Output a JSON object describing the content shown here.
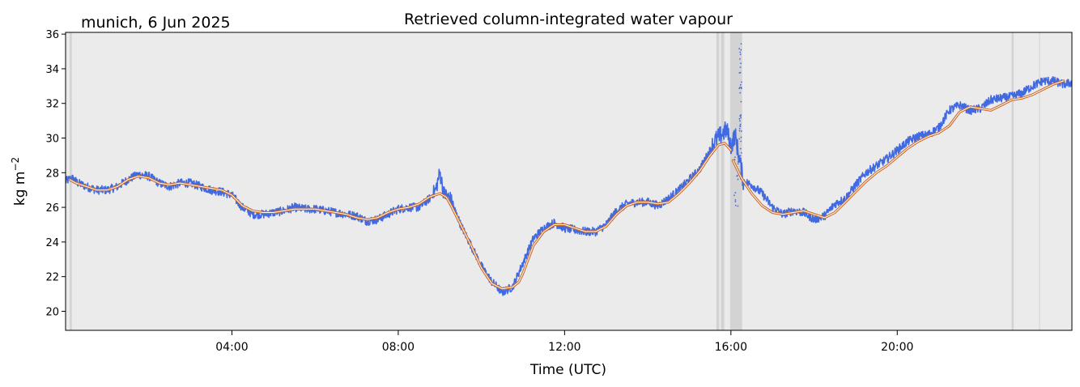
{
  "chart_data": {
    "type": "line",
    "title": "Retrieved column-integrated water vapour",
    "location_date": "munich, 6 Jun 2025",
    "xlabel": "Time (UTC)",
    "ylabel": "kg m",
    "ylabel_superscript": "−2",
    "x_unit": "hours UTC",
    "xlim": [
      0,
      24.2
    ],
    "ylim": [
      18.9,
      36.1
    ],
    "y_ticks": [
      20,
      22,
      24,
      26,
      28,
      30,
      32,
      34,
      36
    ],
    "y_tick_labels": [
      "20",
      "22",
      "24",
      "26",
      "28",
      "30",
      "32",
      "34",
      "36"
    ],
    "x_ticks": [
      4,
      8,
      12,
      16,
      20
    ],
    "x_tick_labels": [
      "04:00",
      "08:00",
      "12:00",
      "16:00",
      "20:00"
    ],
    "grid": false,
    "background_color": "#ebebeb",
    "raw_color": "#4169e1",
    "smooth_outer_color": "#c96a28",
    "smooth_inner_color": "#ffffff",
    "flag_color": "#d3d3d3",
    "flagged_intervals": [
      [
        0.1,
        0.15
      ],
      [
        15.65,
        15.72
      ],
      [
        15.76,
        15.84
      ],
      [
        15.98,
        16.27
      ],
      [
        22.75,
        22.8
      ],
      [
        23.41,
        23.42
      ]
    ],
    "series": [
      {
        "kind": "raw",
        "x": [
          0.0,
          0.15,
          0.3,
          0.5,
          0.75,
          1.0,
          1.25,
          1.5,
          1.75,
          2.0,
          2.25,
          2.5,
          2.75,
          3.0,
          3.25,
          3.5,
          3.75,
          4.0,
          4.25,
          4.5,
          4.75,
          5.0,
          5.25,
          5.5,
          5.75,
          6.0,
          6.25,
          6.5,
          6.75,
          7.0,
          7.25,
          7.5,
          7.75,
          8.0,
          8.25,
          8.5,
          8.75,
          8.9,
          9.0,
          9.1,
          9.25,
          9.5,
          9.75,
          10.0,
          10.25,
          10.5,
          10.75,
          11.0,
          11.25,
          11.5,
          11.75,
          12.0,
          12.25,
          12.5,
          12.75,
          13.0,
          13.25,
          13.5,
          13.75,
          14.0,
          14.25,
          14.5,
          14.75,
          15.0,
          15.25,
          15.5,
          15.6,
          15.9,
          16.0,
          16.1,
          16.3,
          16.5,
          16.75,
          17.0,
          17.25,
          17.5,
          17.75,
          18.0,
          18.25,
          18.5,
          18.75,
          19.0,
          19.25,
          19.5,
          19.75,
          20.0,
          20.25,
          20.5,
          20.75,
          21.0,
          21.25,
          21.5,
          21.75,
          22.0,
          22.25,
          22.5,
          22.75,
          23.0,
          23.25,
          23.5,
          23.75,
          24.0,
          24.2
        ],
        "values": [
          27.5,
          27.7,
          27.4,
          27.2,
          27.0,
          27.0,
          27.2,
          27.6,
          27.9,
          27.8,
          27.4,
          27.2,
          27.4,
          27.4,
          27.2,
          27.0,
          26.9,
          26.7,
          26.0,
          25.6,
          25.6,
          25.7,
          25.8,
          26.0,
          25.9,
          25.9,
          25.8,
          25.7,
          25.6,
          25.5,
          25.2,
          25.3,
          25.6,
          25.9,
          26.0,
          26.0,
          26.5,
          27.0,
          28.0,
          26.8,
          26.5,
          25.0,
          23.8,
          22.6,
          21.7,
          21.1,
          21.4,
          22.8,
          24.2,
          24.8,
          25.1,
          24.8,
          24.7,
          24.6,
          24.6,
          25.0,
          25.8,
          26.2,
          26.3,
          26.3,
          26.1,
          26.5,
          27.0,
          27.6,
          28.2,
          29.3,
          29.8,
          30.5,
          29.5,
          30.2,
          27.5,
          27.3,
          26.8,
          26.0,
          25.6,
          25.8,
          25.7,
          25.3,
          25.5,
          26.2,
          26.5,
          27.3,
          28.0,
          28.4,
          28.8,
          29.3,
          29.8,
          30.1,
          30.2,
          30.6,
          31.6,
          31.9,
          31.6,
          31.7,
          32.2,
          32.3,
          32.4,
          32.6,
          33.0,
          33.3,
          33.3,
          33.1,
          33.2
        ]
      },
      {
        "kind": "smoothed",
        "x": [
          0.1,
          0.25,
          0.5,
          0.75,
          1.0,
          1.25,
          1.5,
          1.75,
          2.0,
          2.25,
          2.5,
          2.75,
          3.0,
          3.25,
          3.5,
          3.75,
          4.0,
          4.25,
          4.5,
          4.75,
          5.0,
          5.25,
          5.5,
          5.75,
          6.0,
          6.25,
          6.5,
          6.75,
          7.0,
          7.25,
          7.5,
          7.75,
          8.0,
          8.25,
          8.5,
          8.75,
          9.0,
          9.15,
          9.25,
          9.5,
          9.75,
          10.0,
          10.25,
          10.5,
          10.75,
          10.9,
          11.0,
          11.25,
          11.5,
          11.75,
          12.0,
          12.25,
          12.5,
          12.75,
          13.0,
          13.25,
          13.5,
          13.75,
          14.0,
          14.25,
          14.5,
          14.75,
          15.0,
          15.25,
          15.5,
          15.7,
          15.85,
          16.0,
          16.05,
          16.25,
          16.5,
          16.75,
          17.0,
          17.25,
          17.5,
          17.75,
          18.0,
          18.25,
          18.5,
          18.75,
          19.0,
          19.25,
          19.5,
          19.75,
          20.0,
          20.25,
          20.5,
          20.75,
          21.0,
          21.25,
          21.5,
          21.75,
          22.0,
          22.25,
          22.5,
          22.75,
          23.0,
          23.25,
          23.5,
          23.75,
          24.0
        ],
        "values": [
          27.6,
          27.4,
          27.2,
          27.0,
          27.0,
          27.2,
          27.6,
          27.8,
          27.7,
          27.4,
          27.3,
          27.4,
          27.3,
          27.2,
          27.1,
          27.0,
          26.7,
          26.1,
          25.8,
          25.7,
          25.7,
          25.8,
          25.9,
          25.9,
          25.9,
          25.8,
          25.7,
          25.6,
          25.4,
          25.3,
          25.4,
          25.7,
          25.9,
          26.0,
          26.2,
          26.6,
          26.8,
          26.6,
          26.2,
          25.0,
          23.8,
          22.5,
          21.6,
          21.3,
          21.4,
          21.7,
          22.2,
          23.8,
          24.6,
          25.0,
          25.0,
          24.8,
          24.6,
          24.6,
          24.9,
          25.6,
          26.1,
          26.3,
          26.3,
          26.2,
          26.3,
          26.8,
          27.4,
          28.1,
          29.0,
          29.6,
          29.7,
          29.3,
          28.7,
          27.7,
          26.8,
          26.1,
          25.7,
          25.6,
          25.7,
          25.8,
          25.6,
          25.4,
          25.7,
          26.3,
          26.9,
          27.5,
          28.0,
          28.4,
          28.9,
          29.4,
          29.8,
          30.1,
          30.3,
          30.7,
          31.5,
          31.8,
          31.7,
          31.6,
          31.9,
          32.2,
          32.3,
          32.5,
          32.8,
          33.1,
          33.3
        ]
      }
    ]
  }
}
